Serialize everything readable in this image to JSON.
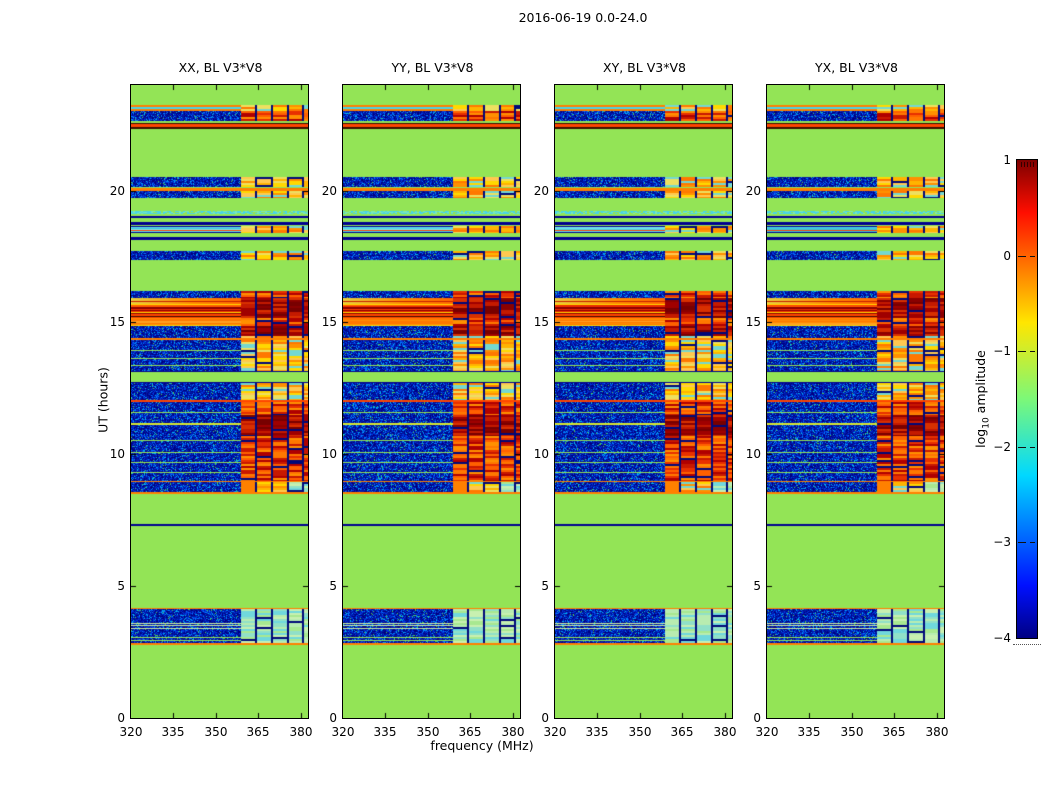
{
  "title": "2016-06-19 0.0-24.0",
  "panels": [
    {
      "title": "XX, BL V3*V8",
      "pol": "XX"
    },
    {
      "title": "YY, BL V3*V8",
      "pol": "YY"
    },
    {
      "title": "XY, BL V3*V8",
      "pol": "XY"
    },
    {
      "title": "YX, BL V3*V8",
      "pol": "YX"
    }
  ],
  "axes": {
    "ylabel": "UT (hours)",
    "xlabel": "frequency (MHz)",
    "yticks": [
      0,
      5,
      10,
      15,
      20
    ],
    "xticks": [
      320,
      335,
      350,
      365,
      380
    ],
    "ylim": [
      0,
      24
    ],
    "xlim": [
      320,
      382.5
    ]
  },
  "colorbar": {
    "label_prefix": "log",
    "label_sub": "10",
    "label_suffix": " amplitude",
    "ticks": [
      "1",
      "0",
      "−1",
      "−2",
      "−3",
      "−4"
    ],
    "vmax": 1,
    "vmin": -4,
    "gradient": [
      [
        "0.00",
        "#7F0000"
      ],
      [
        "0.11",
        "#FF0E00"
      ],
      [
        "0.34",
        "#FFE600"
      ],
      [
        "0.50",
        "#7CF878"
      ],
      [
        "0.66",
        "#00D8FF"
      ],
      [
        "0.89",
        "#0010FF"
      ],
      [
        "1.00",
        "#000083"
      ]
    ]
  },
  "chart_data": {
    "type": "heatmap",
    "title": "2016-06-19 0.0-24.0",
    "xlabel": "frequency (MHz)",
    "ylabel": "UT (hours)",
    "value_label": "log10 amplitude",
    "value_range": [
      -4,
      1
    ],
    "xlim": [
      320,
      382.5
    ],
    "ylim": [
      0,
      24
    ],
    "background_value": -1.5,
    "panel_titles": [
      "XX, BL V3*V8",
      "YY, BL V3*V8",
      "XY, BL V3*V8",
      "YX, BL V3*V8"
    ],
    "rfi_band_mhz": [
      359,
      382.5
    ],
    "rfi_columns": {
      "region_start": 0.623,
      "columns": [
        [
          0.623,
          0.703
        ],
        [
          0.714,
          0.793
        ],
        [
          0.805,
          0.884
        ],
        [
          0.895,
          0.968
        ],
        [
          0.98,
          1.0
        ]
      ]
    },
    "bands": [
      {
        "t0": 23.02,
        "t1": 23.25,
        "type": "stripes",
        "pattern": [
          "orange",
          "cyan",
          "orange"
        ],
        "rfi": "weak"
      },
      {
        "t0": 22.62,
        "t1": 23.02,
        "type": "noise",
        "rfi": "strong"
      },
      {
        "t0": 22.36,
        "t1": 22.56,
        "type": "stripes",
        "pattern": [
          "darkline",
          "orangered",
          "orangered",
          "darkline"
        ]
      },
      {
        "t0": 20.12,
        "t1": 20.5,
        "type": "noise",
        "rfi": "weak"
      },
      {
        "t0": 20.0,
        "t1": 20.1,
        "type": "solid",
        "color": "orange"
      },
      {
        "t0": 19.7,
        "t1": 20.0,
        "type": "noise",
        "rfi": "weak"
      },
      {
        "t0": 19.12,
        "t1": 19.22,
        "type": "cyanspeck"
      },
      {
        "t0": 18.95,
        "t1": 19.05,
        "type": "solid",
        "color": "navy"
      },
      {
        "t0": 18.68,
        "t1": 18.8,
        "type": "solid",
        "color": "navy"
      },
      {
        "t0": 18.4,
        "t1": 18.64,
        "type": "cyanred",
        "rfi": "weak"
      },
      {
        "t0": 18.12,
        "t1": 18.22,
        "type": "solid",
        "color": "navy"
      },
      {
        "t0": 17.36,
        "t1": 17.7,
        "type": "noise",
        "rfi": "weak"
      },
      {
        "t0": 15.92,
        "t1": 16.18,
        "type": "noise",
        "rfi": "strong"
      },
      {
        "t0": 15.7,
        "t1": 15.92,
        "type": "grad",
        "rfi": "darkred"
      },
      {
        "t0": 15.4,
        "t1": 15.7,
        "type": "redband",
        "rfi": "darkred"
      },
      {
        "t0": 15.16,
        "t1": 15.4,
        "type": "stripes",
        "pattern": [
          "yellow",
          "darkred",
          "orangered",
          "darkline",
          "orangered"
        ],
        "rfi": "darkred"
      },
      {
        "t0": 14.86,
        "t1": 15.16,
        "type": "orangeband",
        "rfi": "strong"
      },
      {
        "t0": 14.48,
        "t1": 14.86,
        "type": "noise",
        "rfi": "darkred"
      },
      {
        "t0": 13.15,
        "t1": 14.48,
        "type": "noise",
        "rfi": "weak",
        "lines": [
          {
            "t": 14.4,
            "color": "orange"
          },
          {
            "t": 13.95,
            "color": "bggreen"
          },
          {
            "t": 13.65,
            "color": "bggreen"
          },
          {
            "t": 13.38,
            "color": "bggreen"
          }
        ]
      },
      {
        "t0": 12.7,
        "t1": 13.15,
        "type": "greenband"
      },
      {
        "t0": 12.04,
        "t1": 12.7,
        "type": "noise",
        "rfi": "weak"
      },
      {
        "t0": 11.97,
        "t1": 12.04,
        "type": "solid",
        "color": "orangered"
      },
      {
        "t0": 9.0,
        "t1": 11.97,
        "type": "noise",
        "rfi": "strong",
        "strong_rfi": [
          10.7,
          11.5
        ],
        "lines": [
          {
            "t": 11.62,
            "color": "bggreen"
          },
          {
            "t": 11.2,
            "color": "yellowgreen"
          },
          {
            "t": 10.55,
            "color": "bggreen"
          },
          {
            "t": 10.08,
            "color": "bggreen"
          },
          {
            "t": 9.7,
            "color": "bggreen"
          },
          {
            "t": 9.32,
            "color": "bggreen"
          }
        ]
      },
      {
        "t0": 8.93,
        "t1": 9.0,
        "type": "solid",
        "color": "orange"
      },
      {
        "t0": 8.56,
        "t1": 8.93,
        "type": "noise",
        "rfi": "blob"
      },
      {
        "t0": 8.5,
        "t1": 8.56,
        "type": "solid",
        "color": "orange"
      },
      {
        "t0": 7.28,
        "t1": 7.34,
        "type": "solid",
        "color": "navy"
      },
      {
        "t0": 4.12,
        "t1": 4.18,
        "type": "solid",
        "color": "orange"
      },
      {
        "t0": 2.85,
        "t1": 4.12,
        "type": "noise",
        "rfi": "pale",
        "lines": [
          {
            "t": 3.62,
            "color": "palegreen"
          },
          {
            "t": 3.52,
            "color": "palegreen"
          },
          {
            "t": 3.42,
            "color": "palegreen"
          },
          {
            "t": 3.08,
            "color": "bggreen"
          },
          {
            "t": 2.97,
            "color": "bggreen"
          }
        ]
      },
      {
        "t0": 2.78,
        "t1": 2.85,
        "type": "solid",
        "color": "orange"
      }
    ],
    "palette": {
      "background": "#93E456",
      "noise": [
        "#0018A8",
        "#000080",
        "#0038E0",
        "#0080FF",
        "#00C0E8",
        "#50C850"
      ],
      "gap": "#000878",
      "orange": "#FF8000",
      "orangered": "#FF4500",
      "red": "#E82800",
      "darkred": "#8B0000",
      "yellow": "#FFD800",
      "cyan": "#48D4E8",
      "navy": "#000090",
      "darkline": "#3A0E00",
      "bggreen": "#93E456",
      "palegreen": "#CCF0A0",
      "yellowgreen": "#D8E830",
      "rfi_weak": [
        "#FFB400",
        "#FFD800",
        "#FF9000",
        "#EDE060",
        "#FF7800",
        "#74D8D0",
        "#FFC850"
      ],
      "rfi_strong": [
        "#FF6000",
        "#E83000",
        "#C81800",
        "#FF9000",
        "#B00000",
        "#FF7800"
      ],
      "rfi_darkred": [
        "#8B0000",
        "#A00000",
        "#C41A00",
        "#780000",
        "#D83000"
      ],
      "rfi_pale": [
        "#B8ECB0",
        "#90E0C8",
        "#70D8DC",
        "#A8E890",
        "#C8F0B0"
      ],
      "rfi_blob_main": "#FF8000"
    }
  }
}
